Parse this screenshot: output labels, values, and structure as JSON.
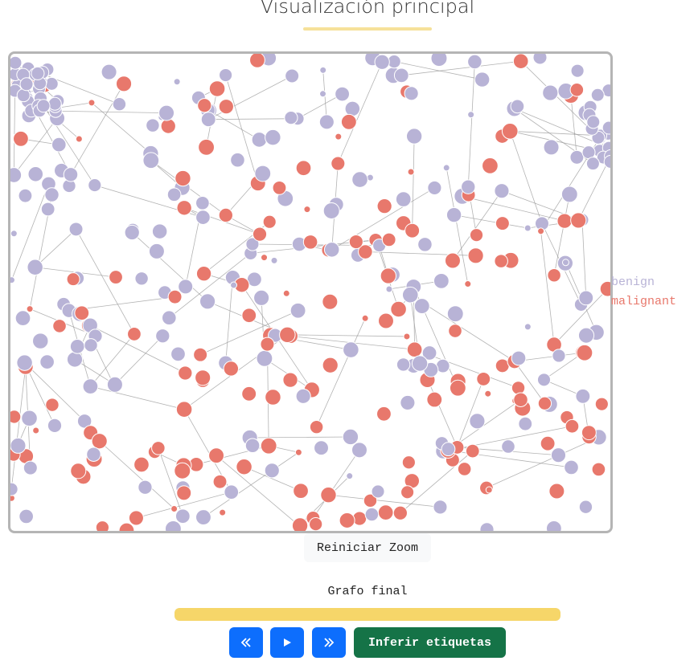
{
  "header": {
    "title": "Visualización principal"
  },
  "legend": {
    "benign": "benign",
    "malignant": "malignant"
  },
  "colors": {
    "benign": "#b8b3d6",
    "malignant": "#e8786c",
    "edge": "#9a9a9a",
    "progress": "#f6d669",
    "primary": "#0d6efd",
    "success": "#157347"
  },
  "controls": {
    "reset_zoom": "Reiniciar Zoom",
    "stage_label": "Grafo final",
    "progress": 1.0,
    "prev_icon": "double-chevron-left-icon",
    "play_icon": "play-icon",
    "next_icon": "double-chevron-right-icon",
    "infer_label": "Inferir etiquetas"
  }
}
